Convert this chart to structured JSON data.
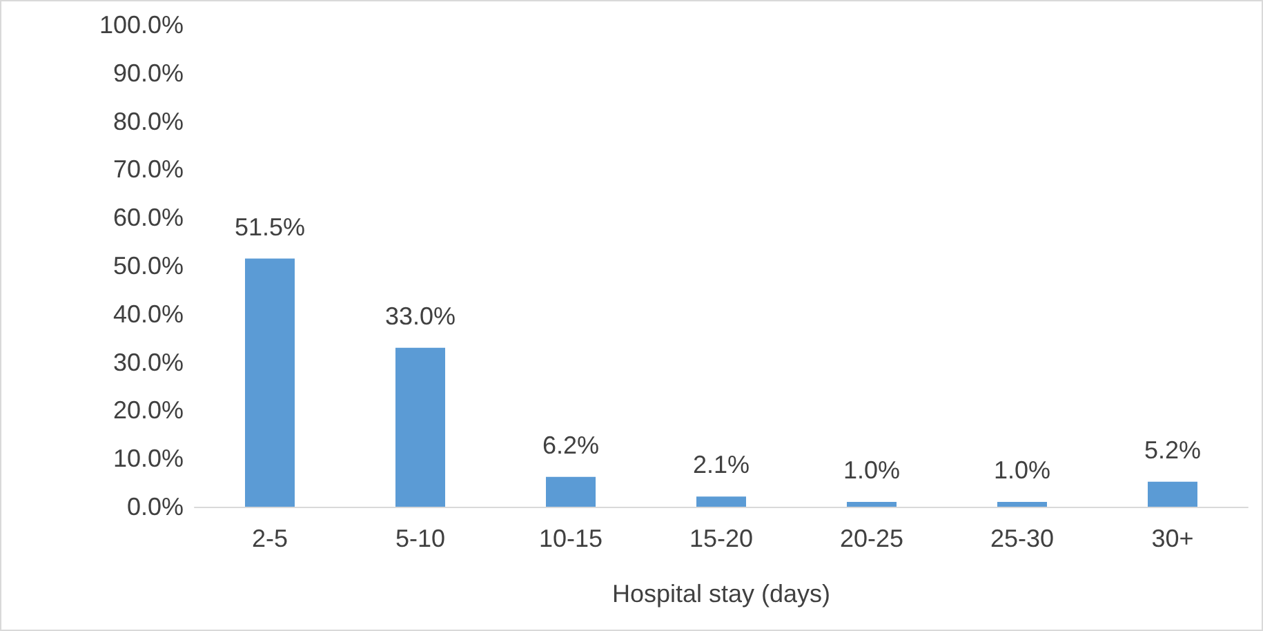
{
  "chart_data": {
    "type": "bar",
    "xlabel": "Hospital stay (days)",
    "categories": [
      "2-5",
      "5-10",
      "10-15",
      "15-20",
      "20-25",
      "25-30",
      "30+"
    ],
    "values": [
      51.5,
      33.0,
      6.2,
      2.1,
      1.0,
      1.0,
      5.2
    ],
    "value_labels": [
      "51.5%",
      "33.0%",
      "6.2%",
      "2.1%",
      "1.0%",
      "1.0%",
      "5.2%"
    ],
    "color": "#5b9bd5",
    "ylim": [
      0,
      100
    ],
    "yticks": [
      {
        "value": 0,
        "label": "0.0%"
      },
      {
        "value": 10,
        "label": "10.0%"
      },
      {
        "value": 20,
        "label": "20.0%"
      },
      {
        "value": 30,
        "label": "30.0%"
      },
      {
        "value": 40,
        "label": "40.0%"
      },
      {
        "value": 50,
        "label": "50.0%"
      },
      {
        "value": 60,
        "label": "60.0%"
      },
      {
        "value": 70,
        "label": "70.0%"
      },
      {
        "value": 80,
        "label": "80.0%"
      },
      {
        "value": 90,
        "label": "90.0%"
      },
      {
        "value": 100,
        "label": "100.0%"
      }
    ],
    "grid": false
  }
}
